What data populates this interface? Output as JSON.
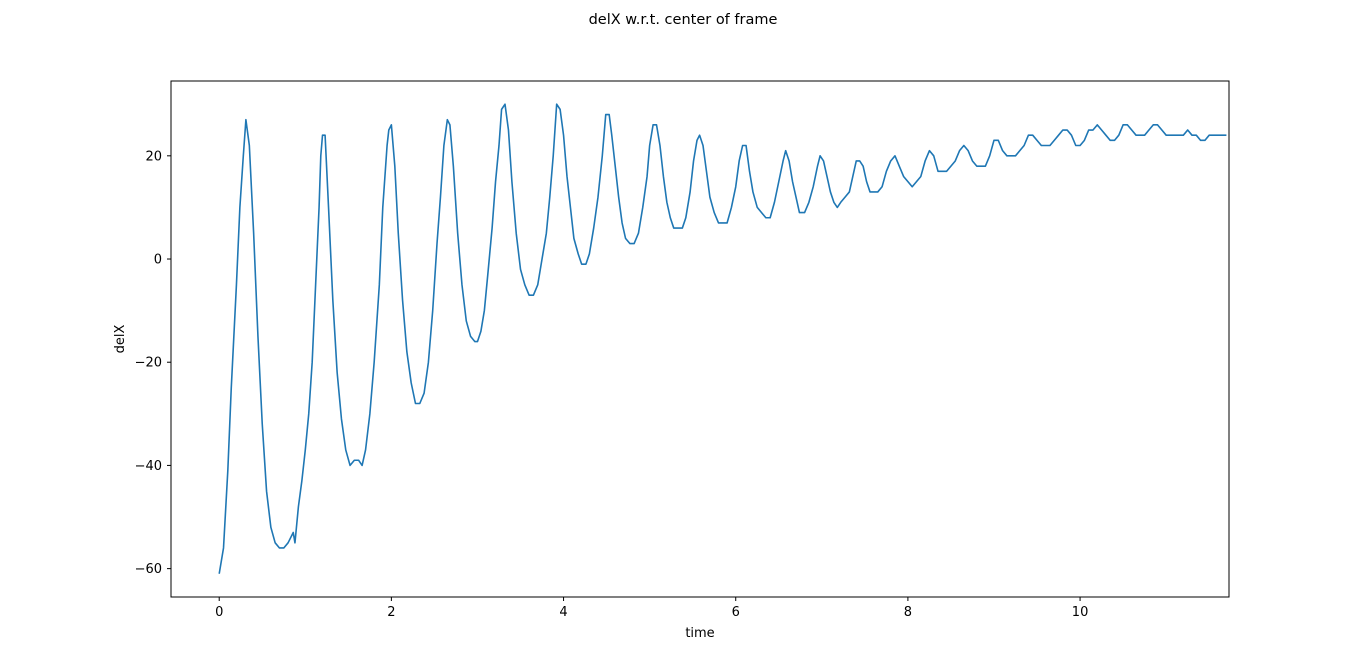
{
  "chart_data": {
    "type": "line",
    "title": "delX w.r.t. center of frame",
    "xlabel": "time",
    "ylabel": "delX",
    "xlim": [
      -0.56,
      11.73
    ],
    "ylim": [
      -65.5,
      34.5
    ],
    "grid": false,
    "x_ticks": [
      0,
      2,
      4,
      6,
      8,
      10
    ],
    "y_ticks": [
      -60,
      -40,
      -20,
      0,
      20
    ],
    "x_tick_labels": [
      "0",
      "2",
      "4",
      "6",
      "8",
      "10"
    ],
    "y_tick_labels": [
      "−60",
      "−40",
      "−20",
      "0",
      "20"
    ],
    "line_color": "#1f77b4",
    "series": [
      {
        "points": [
          [
            0.0,
            -61
          ],
          [
            0.05,
            -56
          ],
          [
            0.1,
            -41
          ],
          [
            0.14,
            -25
          ],
          [
            0.2,
            -5
          ],
          [
            0.24,
            10
          ],
          [
            0.28,
            20
          ],
          [
            0.31,
            27
          ],
          [
            0.35,
            22
          ],
          [
            0.4,
            5
          ],
          [
            0.45,
            -15
          ],
          [
            0.5,
            -32
          ],
          [
            0.55,
            -45
          ],
          [
            0.6,
            -52
          ],
          [
            0.65,
            -55
          ],
          [
            0.7,
            -56
          ],
          [
            0.75,
            -56
          ],
          [
            0.8,
            -55
          ],
          [
            0.86,
            -53
          ],
          [
            0.88,
            -55
          ],
          [
            0.92,
            -48
          ],
          [
            0.96,
            -43
          ],
          [
            1.0,
            -37
          ],
          [
            1.04,
            -30
          ],
          [
            1.08,
            -20
          ],
          [
            1.12,
            -5
          ],
          [
            1.16,
            10
          ],
          [
            1.18,
            20
          ],
          [
            1.2,
            24
          ],
          [
            1.23,
            24
          ],
          [
            1.27,
            10
          ],
          [
            1.32,
            -8
          ],
          [
            1.37,
            -22
          ],
          [
            1.42,
            -31
          ],
          [
            1.47,
            -37
          ],
          [
            1.52,
            -40
          ],
          [
            1.57,
            -39
          ],
          [
            1.62,
            -39
          ],
          [
            1.66,
            -40
          ],
          [
            1.7,
            -37
          ],
          [
            1.75,
            -30
          ],
          [
            1.8,
            -20
          ],
          [
            1.86,
            -5
          ],
          [
            1.9,
            10
          ],
          [
            1.95,
            22
          ],
          [
            1.97,
            25
          ],
          [
            2.0,
            26
          ],
          [
            2.04,
            18
          ],
          [
            2.08,
            5
          ],
          [
            2.13,
            -8
          ],
          [
            2.18,
            -18
          ],
          [
            2.23,
            -24
          ],
          [
            2.28,
            -28
          ],
          [
            2.33,
            -28
          ],
          [
            2.38,
            -26
          ],
          [
            2.43,
            -20
          ],
          [
            2.48,
            -10
          ],
          [
            2.53,
            3
          ],
          [
            2.57,
            12
          ],
          [
            2.61,
            22
          ],
          [
            2.65,
            27
          ],
          [
            2.68,
            26
          ],
          [
            2.72,
            18
          ],
          [
            2.77,
            5
          ],
          [
            2.82,
            -5
          ],
          [
            2.87,
            -12
          ],
          [
            2.92,
            -15
          ],
          [
            2.97,
            -16
          ],
          [
            3.0,
            -16
          ],
          [
            3.04,
            -14
          ],
          [
            3.08,
            -10
          ],
          [
            3.12,
            -3
          ],
          [
            3.17,
            6
          ],
          [
            3.21,
            15
          ],
          [
            3.25,
            22
          ],
          [
            3.28,
            29
          ],
          [
            3.32,
            30
          ],
          [
            3.36,
            25
          ],
          [
            3.4,
            15
          ],
          [
            3.45,
            5
          ],
          [
            3.5,
            -2
          ],
          [
            3.55,
            -5
          ],
          [
            3.6,
            -7
          ],
          [
            3.65,
            -7
          ],
          [
            3.7,
            -5
          ],
          [
            3.75,
            0
          ],
          [
            3.8,
            5
          ],
          [
            3.84,
            12
          ],
          [
            3.88,
            20
          ],
          [
            3.92,
            30
          ],
          [
            3.96,
            29
          ],
          [
            4.0,
            24
          ],
          [
            4.04,
            16
          ],
          [
            4.08,
            10
          ],
          [
            4.12,
            4
          ],
          [
            4.17,
            1
          ],
          [
            4.21,
            -1
          ],
          [
            4.26,
            -1
          ],
          [
            4.3,
            1
          ],
          [
            4.35,
            6
          ],
          [
            4.4,
            12
          ],
          [
            4.45,
            20
          ],
          [
            4.49,
            28
          ],
          [
            4.53,
            28
          ],
          [
            4.56,
            24
          ],
          [
            4.6,
            18
          ],
          [
            4.64,
            12
          ],
          [
            4.68,
            7
          ],
          [
            4.72,
            4
          ],
          [
            4.77,
            3
          ],
          [
            4.82,
            3
          ],
          [
            4.87,
            5
          ],
          [
            4.92,
            10
          ],
          [
            4.97,
            16
          ],
          [
            5.0,
            22
          ],
          [
            5.04,
            26
          ],
          [
            5.08,
            26
          ],
          [
            5.12,
            22
          ],
          [
            5.16,
            16
          ],
          [
            5.2,
            11
          ],
          [
            5.24,
            8
          ],
          [
            5.28,
            6
          ],
          [
            5.33,
            6
          ],
          [
            5.38,
            6
          ],
          [
            5.42,
            8
          ],
          [
            5.47,
            13
          ],
          [
            5.51,
            19
          ],
          [
            5.55,
            23
          ],
          [
            5.58,
            24
          ],
          [
            5.62,
            22
          ],
          [
            5.66,
            17
          ],
          [
            5.7,
            12
          ],
          [
            5.75,
            9
          ],
          [
            5.8,
            7
          ],
          [
            5.85,
            7
          ],
          [
            5.9,
            7
          ],
          [
            5.95,
            10
          ],
          [
            6.0,
            14
          ],
          [
            6.04,
            19
          ],
          [
            6.08,
            22
          ],
          [
            6.12,
            22
          ],
          [
            6.16,
            17
          ],
          [
            6.2,
            13
          ],
          [
            6.25,
            10
          ],
          [
            6.3,
            9
          ],
          [
            6.35,
            8
          ],
          [
            6.4,
            8
          ],
          [
            6.45,
            11
          ],
          [
            6.5,
            15
          ],
          [
            6.55,
            19
          ],
          [
            6.58,
            21
          ],
          [
            6.62,
            19
          ],
          [
            6.66,
            15
          ],
          [
            6.7,
            12
          ],
          [
            6.74,
            9
          ],
          [
            6.8,
            9
          ],
          [
            6.85,
            11
          ],
          [
            6.9,
            14
          ],
          [
            6.95,
            18
          ],
          [
            6.98,
            20
          ],
          [
            7.02,
            19
          ],
          [
            7.06,
            16
          ],
          [
            7.1,
            13
          ],
          [
            7.14,
            11
          ],
          [
            7.18,
            10
          ],
          [
            7.22,
            11
          ],
          [
            7.27,
            12
          ],
          [
            7.32,
            13
          ],
          [
            7.36,
            16
          ],
          [
            7.4,
            19
          ],
          [
            7.44,
            19
          ],
          [
            7.48,
            18
          ],
          [
            7.52,
            15
          ],
          [
            7.56,
            13
          ],
          [
            7.6,
            13
          ],
          [
            7.65,
            13
          ],
          [
            7.7,
            14
          ],
          [
            7.75,
            17
          ],
          [
            7.8,
            19
          ],
          [
            7.85,
            20
          ],
          [
            7.9,
            18
          ],
          [
            7.95,
            16
          ],
          [
            8.0,
            15
          ],
          [
            8.05,
            14
          ],
          [
            8.1,
            15
          ],
          [
            8.15,
            16
          ],
          [
            8.2,
            19
          ],
          [
            8.25,
            21
          ],
          [
            8.3,
            20
          ],
          [
            8.35,
            17
          ],
          [
            8.4,
            17
          ],
          [
            8.45,
            17
          ],
          [
            8.5,
            18
          ],
          [
            8.55,
            19
          ],
          [
            8.6,
            21
          ],
          [
            8.65,
            22
          ],
          [
            8.7,
            21
          ],
          [
            8.75,
            19
          ],
          [
            8.8,
            18
          ],
          [
            8.85,
            18
          ],
          [
            8.9,
            18
          ],
          [
            8.95,
            20
          ],
          [
            9.0,
            23
          ],
          [
            9.05,
            23
          ],
          [
            9.1,
            21
          ],
          [
            9.15,
            20
          ],
          [
            9.2,
            20
          ],
          [
            9.25,
            20
          ],
          [
            9.3,
            21
          ],
          [
            9.35,
            22
          ],
          [
            9.4,
            24
          ],
          [
            9.45,
            24
          ],
          [
            9.5,
            23
          ],
          [
            9.55,
            22
          ],
          [
            9.6,
            22
          ],
          [
            9.65,
            22
          ],
          [
            9.7,
            23
          ],
          [
            9.75,
            24
          ],
          [
            9.8,
            25
          ],
          [
            9.85,
            25
          ],
          [
            9.9,
            24
          ],
          [
            9.95,
            22
          ],
          [
            10.0,
            22
          ],
          [
            10.05,
            23
          ],
          [
            10.1,
            25
          ],
          [
            10.15,
            25
          ],
          [
            10.2,
            26
          ],
          [
            10.25,
            25
          ],
          [
            10.3,
            24
          ],
          [
            10.35,
            23
          ],
          [
            10.4,
            23
          ],
          [
            10.45,
            24
          ],
          [
            10.5,
            26
          ],
          [
            10.55,
            26
          ],
          [
            10.6,
            25
          ],
          [
            10.65,
            24
          ],
          [
            10.7,
            24
          ],
          [
            10.75,
            24
          ],
          [
            10.8,
            25
          ],
          [
            10.85,
            26
          ],
          [
            10.9,
            26
          ],
          [
            10.95,
            25
          ],
          [
            11.0,
            24
          ],
          [
            11.05,
            24
          ],
          [
            11.1,
            24
          ],
          [
            11.15,
            24
          ],
          [
            11.2,
            24
          ],
          [
            11.25,
            25
          ],
          [
            11.3,
            24
          ],
          [
            11.35,
            24
          ],
          [
            11.4,
            23
          ],
          [
            11.45,
            23
          ],
          [
            11.5,
            24
          ],
          [
            11.55,
            24
          ],
          [
            11.6,
            24
          ],
          [
            11.65,
            24
          ],
          [
            11.7,
            24
          ]
        ]
      }
    ]
  }
}
